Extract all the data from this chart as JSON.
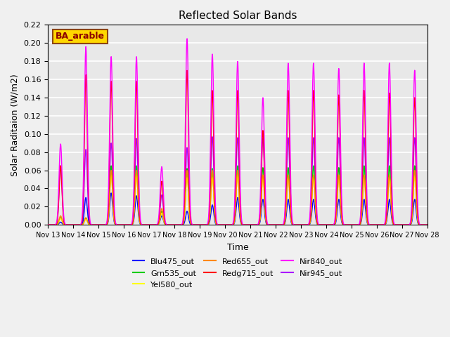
{
  "title": "Reflected Solar Bands",
  "xlabel": "Time",
  "ylabel": "Solar Raditaion (W/m2)",
  "annotation": "BA_arable",
  "annotation_color": "#8B0000",
  "annotation_bg": "#FFD700",
  "ylim": [
    0,
    0.22
  ],
  "series": [
    {
      "label": "Blu475_out",
      "color": "#0000FF",
      "lw": 1.0
    },
    {
      "label": "Grn535_out",
      "color": "#00CC00",
      "lw": 1.0
    },
    {
      "label": "Yel580_out",
      "color": "#FFFF00",
      "lw": 1.0
    },
    {
      "label": "Red655_out",
      "color": "#FF8800",
      "lw": 1.0
    },
    {
      "label": "Redg715_out",
      "color": "#FF0000",
      "lw": 1.0
    },
    {
      "label": "Nir840_out",
      "color": "#FF00FF",
      "lw": 1.0
    },
    {
      "label": "Nir945_out",
      "color": "#AA00FF",
      "lw": 1.0
    }
  ],
  "xtick_positions": [
    0,
    1,
    2,
    3,
    4,
    5,
    6,
    7,
    8,
    9,
    10,
    11,
    12,
    13,
    14,
    15
  ],
  "xtick_labels": [
    "Nov 13",
    "Nov 14",
    "Nov 15",
    "Nov 16",
    "Nov 17",
    "Nov 18",
    "Nov 19",
    "Nov 20",
    "Nov 21",
    "Nov 22",
    "Nov 23",
    "Nov 24",
    "Nov 25",
    "Nov 26",
    "Nov 27",
    "Nov 28"
  ],
  "background_color": "#E8E8E8",
  "grid_color": "#FFFFFF",
  "n_days": 15,
  "peak_heights_nir840": [
    0.089,
    0.196,
    0.185,
    0.185,
    0.064,
    0.205,
    0.188,
    0.18,
    0.14,
    0.178,
    0.178,
    0.172,
    0.178,
    0.178,
    0.17
  ],
  "peak_heights_redg715": [
    0.065,
    0.165,
    0.158,
    0.158,
    0.048,
    0.17,
    0.148,
    0.148,
    0.104,
    0.148,
    0.148,
    0.143,
    0.148,
    0.145,
    0.14
  ],
  "peak_heights_red655": [
    0.01,
    0.008,
    0.06,
    0.06,
    0.018,
    0.06,
    0.06,
    0.06,
    0.055,
    0.055,
    0.055,
    0.055,
    0.055,
    0.055,
    0.06
  ],
  "peak_heights_grn535": [
    0.008,
    0.007,
    0.065,
    0.065,
    0.015,
    0.062,
    0.062,
    0.065,
    0.063,
    0.063,
    0.065,
    0.063,
    0.065,
    0.065,
    0.065
  ],
  "peak_heights_yel580": [
    0.007,
    0.006,
    0.055,
    0.055,
    0.013,
    0.052,
    0.052,
    0.055,
    0.053,
    0.053,
    0.053,
    0.053,
    0.053,
    0.053,
    0.053
  ],
  "peak_heights_blu475": [
    0.003,
    0.03,
    0.035,
    0.032,
    0.01,
    0.015,
    0.022,
    0.03,
    0.028,
    0.028,
    0.028,
    0.028,
    0.028,
    0.028,
    0.028
  ],
  "peak_heights_nir945": [
    0.065,
    0.083,
    0.09,
    0.095,
    0.033,
    0.085,
    0.097,
    0.096,
    0.096,
    0.096,
    0.096,
    0.096,
    0.096,
    0.096,
    0.096
  ]
}
